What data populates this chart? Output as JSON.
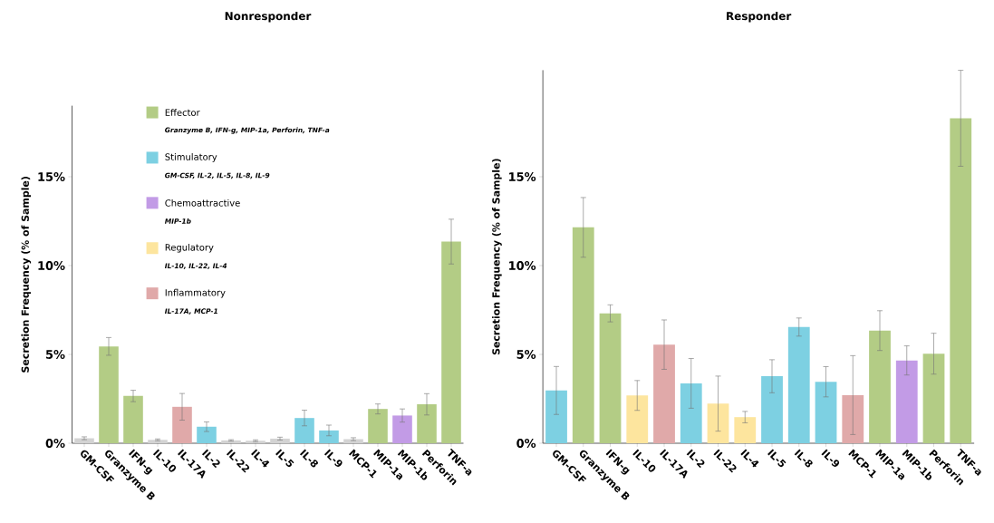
{
  "chart_data": [
    {
      "type": "bar",
      "title": "Nonresponder",
      "ylabel": "Secretion Frequency (% of Sample)",
      "categories": [
        "GM-CSF",
        "Granzyme B",
        "IFN-g",
        "IL-10",
        "IL-17A",
        "IL-2",
        "IL-22",
        "IL-4",
        "IL-5",
        "IL-8",
        "IL-9",
        "MCP-1",
        "MIP-1a",
        "MIP-1b",
        "Perforin",
        "TNF-a"
      ],
      "ylim": [
        0,
        19
      ],
      "yticks": [
        {
          "value": 0,
          "label": "0%"
        },
        {
          "value": 5,
          "label": "5%"
        },
        {
          "value": 10,
          "label": "10%"
        },
        {
          "value": 15,
          "label": "15%"
        }
      ],
      "legend": "top",
      "series": [
        {
          "name": "Effector",
          "color": "#b3cc85",
          "values": [
            null,
            5.45,
            2.66,
            null,
            null,
            null,
            null,
            null,
            null,
            null,
            null,
            null,
            1.93,
            null,
            2.19,
            11.35
          ],
          "errors": [
            null,
            0.5,
            0.32,
            null,
            null,
            null,
            null,
            null,
            null,
            null,
            null,
            null,
            0.28,
            null,
            0.6,
            1.26
          ]
        },
        {
          "name": "Stimulatory",
          "color": "#7dd0e2",
          "values": [
            null,
            null,
            null,
            null,
            null,
            0.93,
            null,
            null,
            null,
            1.42,
            0.72,
            null,
            null,
            null,
            null,
            null
          ],
          "errors": [
            null,
            null,
            null,
            null,
            null,
            0.27,
            null,
            null,
            null,
            0.44,
            0.3,
            null,
            null,
            null,
            null,
            null
          ]
        },
        {
          "name": "Chemoattractive",
          "color": "#c29be6",
          "values": [
            null,
            null,
            null,
            null,
            null,
            null,
            null,
            null,
            null,
            null,
            null,
            null,
            null,
            1.56,
            null,
            null
          ],
          "errors": [
            null,
            null,
            null,
            null,
            null,
            null,
            null,
            null,
            null,
            null,
            null,
            null,
            null,
            0.37,
            null,
            null
          ]
        },
        {
          "name": "Regulatory",
          "color": "#fde59e",
          "values": [
            null,
            null,
            null,
            null,
            null,
            null,
            null,
            null,
            null,
            null,
            null,
            null,
            null,
            null,
            null,
            null
          ],
          "errors": [
            null,
            null,
            null,
            null,
            null,
            null,
            null,
            null,
            null,
            null,
            null,
            null,
            null,
            null,
            null,
            null
          ]
        },
        {
          "name": "Inflammatory",
          "color": "#e0a9a9",
          "values": [
            null,
            null,
            null,
            null,
            2.05,
            null,
            null,
            null,
            null,
            null,
            null,
            null,
            null,
            null,
            null,
            null
          ],
          "errors": [
            null,
            null,
            null,
            null,
            0.75,
            null,
            null,
            null,
            null,
            null,
            null,
            null,
            null,
            null,
            null,
            null
          ]
        },
        {
          "color": "#d3d3d3",
          "values": [
            0.28,
            null,
            null,
            0.19,
            null,
            null,
            0.16,
            0.14,
            0.26,
            null,
            null,
            0.23,
            null,
            null,
            null,
            null
          ],
          "errors": [
            0.08,
            null,
            null,
            0.05,
            null,
            null,
            0.04,
            0.05,
            0.08,
            null,
            null,
            0.08,
            null,
            null,
            null,
            null
          ]
        }
      ],
      "annotations": [
        "Granzyme B, IFN-g, MIP-1a, Perforin, TNF-a",
        "GM-CSF, IL-2, IL-5, IL-8, IL-9",
        "MIP-1b",
        "IL-10, IL-22, IL-4",
        "IL-17A, MCP-1"
      ]
    },
    {
      "type": "bar",
      "title": "Responder",
      "ylabel": "Secretion Frequency (% of Sample)",
      "categories": [
        "GM-CSF",
        "Granzyme B",
        "IFN-g",
        "IL-10",
        "IL-17A",
        "IL-2",
        "IL-22",
        "IL-4",
        "IL-5",
        "IL-8",
        "IL-9",
        "MCP-1",
        "MIP-1a",
        "MIP-1b",
        "Perforin",
        "TNF-a"
      ],
      "ylim": [
        0,
        21
      ],
      "yticks": [
        {
          "value": 0,
          "label": "0%"
        },
        {
          "value": 5,
          "label": "5%"
        },
        {
          "value": 10,
          "label": "10%"
        },
        {
          "value": 15,
          "label": "15%"
        }
      ],
      "series": [
        {
          "color": "#b3cc85",
          "values": [
            null,
            12.15,
            7.31,
            null,
            null,
            null,
            null,
            null,
            null,
            null,
            null,
            null,
            6.34,
            null,
            5.04,
            18.29
          ],
          "errors": [
            null,
            1.68,
            0.48,
            null,
            null,
            null,
            null,
            null,
            null,
            null,
            null,
            null,
            1.12,
            null,
            1.15,
            2.7
          ]
        },
        {
          "color": "#7dd0e2",
          "values": [
            2.97,
            null,
            null,
            null,
            null,
            3.37,
            null,
            null,
            3.77,
            6.54,
            3.46,
            null,
            null,
            null,
            null,
            null
          ],
          "errors": [
            1.35,
            null,
            null,
            null,
            null,
            1.4,
            null,
            null,
            0.93,
            0.51,
            0.85,
            null,
            null,
            null,
            null,
            null
          ]
        },
        {
          "color": "#c29be6",
          "values": [
            null,
            null,
            null,
            null,
            null,
            null,
            null,
            null,
            null,
            null,
            null,
            null,
            null,
            4.66,
            null,
            null
          ],
          "errors": [
            null,
            null,
            null,
            null,
            null,
            null,
            null,
            null,
            null,
            null,
            null,
            null,
            null,
            0.82,
            null,
            null
          ]
        },
        {
          "color": "#fde59e",
          "values": [
            null,
            null,
            null,
            2.69,
            null,
            null,
            2.23,
            1.47,
            null,
            null,
            null,
            null,
            null,
            null,
            null,
            null
          ],
          "errors": [
            null,
            null,
            null,
            0.84,
            null,
            null,
            1.55,
            0.32,
            null,
            null,
            null,
            null,
            null,
            null,
            null,
            null
          ]
        },
        {
          "color": "#e0a9a9",
          "values": [
            null,
            null,
            null,
            null,
            5.55,
            null,
            null,
            null,
            null,
            null,
            null,
            2.71,
            null,
            null,
            null,
            null
          ],
          "errors": [
            null,
            null,
            null,
            null,
            1.39,
            null,
            null,
            null,
            null,
            null,
            null,
            2.22,
            null,
            null,
            null,
            null
          ]
        }
      ]
    }
  ]
}
